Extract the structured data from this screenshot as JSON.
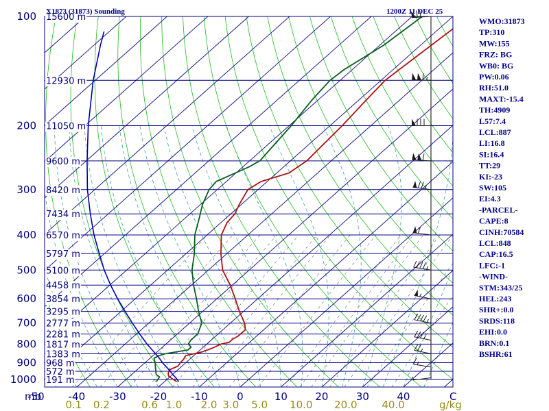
{
  "header": {
    "station": "X1873 (31873) Sounding",
    "time": "1200Z 11 DEC 25"
  },
  "chart_data": {
    "type": "line",
    "title": "X1873 (31873) Sounding",
    "subtitle": "1200Z 11 DEC 25",
    "xlabel": "",
    "ylabel": "mb",
    "pressure_levels": [
      100,
      200,
      300,
      400,
      500,
      600,
      700,
      800,
      900,
      1000
    ],
    "pressure_labels": [
      "100",
      "200",
      "300",
      "400",
      "500",
      "600",
      "700",
      "800",
      "900",
      "1000"
    ],
    "y_axis_unit": "mb",
    "temperature_ticks": [
      -50,
      -40,
      -30,
      -20,
      -10,
      0,
      10,
      20,
      30,
      40
    ],
    "temperature_tick_labels": [
      "-50",
      "-40",
      "-30",
      "-20",
      "-10",
      "0",
      "10",
      "20",
      "30",
      "40"
    ],
    "temperature_unit": "C",
    "mixing_ratio_ticks": [
      0.1,
      0.2,
      0.6,
      1.0,
      2.0,
      3.0,
      5.0,
      10.0,
      20.0,
      40.0
    ],
    "mixing_ratio_labels": [
      "0.1",
      "0.2",
      "0.6",
      "1.0",
      "2.0",
      "3.0",
      "5.0",
      "10.0",
      "20.0",
      "40.0"
    ],
    "mixing_ratio_unit": "g/kg",
    "ylim": [
      1050,
      100
    ],
    "xlim_at_1000mb": [
      -50,
      50
    ],
    "height_labels": [
      {
        "p": 100,
        "label": "15600 m"
      },
      {
        "p": 150,
        "label": "12930 m"
      },
      {
        "p": 200,
        "label": "11050 m"
      },
      {
        "p": 250,
        "label": "9600 m"
      },
      {
        "p": 300,
        "label": "8420 m"
      },
      {
        "p": 350,
        "label": "7434 m"
      },
      {
        "p": 400,
        "label": "6570 m"
      },
      {
        "p": 450,
        "label": "5797 m"
      },
      {
        "p": 500,
        "label": "5100 m"
      },
      {
        "p": 550,
        "label": "4458 m"
      },
      {
        "p": 600,
        "label": "3854 m"
      },
      {
        "p": 650,
        "label": "3295 m"
      },
      {
        "p": 700,
        "label": "2777 m"
      },
      {
        "p": 750,
        "label": "2281 m"
      },
      {
        "p": 800,
        "label": "1817 m"
      },
      {
        "p": 850,
        "label": "1383 m"
      },
      {
        "p": 900,
        "label": "968 m"
      },
      {
        "p": 950,
        "label": "572 m"
      },
      {
        "p": 1000,
        "label": "191 m"
      }
    ],
    "series": [
      {
        "kind": "temperature",
        "color": "#b01010",
        "points": [
          [
            1015,
            -17.0
          ],
          [
            995,
            -19.0
          ],
          [
            980,
            -20.5
          ],
          [
            960,
            -21.5
          ],
          [
            940,
            -22.0
          ],
          [
            920,
            -21.0
          ],
          [
            900,
            -21.3
          ],
          [
            880,
            -21.5
          ],
          [
            860,
            -22.0
          ],
          [
            840,
            -19.0
          ],
          [
            820,
            -17.5
          ],
          [
            800,
            -16.5
          ],
          [
            790,
            -15.0
          ],
          [
            775,
            -15.0
          ],
          [
            760,
            -14.5
          ],
          [
            730,
            -14.5
          ],
          [
            700,
            -16.5
          ],
          [
            650,
            -21.0
          ],
          [
            600,
            -25.5
          ],
          [
            550,
            -30.5
          ],
          [
            500,
            -36.5
          ],
          [
            450,
            -41.5
          ],
          [
            400,
            -46.5
          ],
          [
            370,
            -48.5
          ],
          [
            350,
            -49.0
          ],
          [
            330,
            -50.5
          ],
          [
            300,
            -52.5
          ],
          [
            285,
            -51.5
          ],
          [
            270,
            -47.0
          ],
          [
            250,
            -46.0
          ],
          [
            200,
            -47.0
          ],
          [
            175,
            -48.0
          ],
          [
            150,
            -49.0
          ],
          [
            140,
            -48.5
          ],
          [
            100,
            -46.0
          ]
        ]
      },
      {
        "kind": "dewpoint",
        "color": "#0b5c1e",
        "points": [
          [
            1015,
            -22.0
          ],
          [
            985,
            -22.5
          ],
          [
            970,
            -24.0
          ],
          [
            950,
            -25.0
          ],
          [
            930,
            -26.0
          ],
          [
            900,
            -27.5
          ],
          [
            875,
            -29.0
          ],
          [
            860,
            -28.5
          ],
          [
            850,
            -27.5
          ],
          [
            830,
            -23.0
          ],
          [
            815,
            -23.0
          ],
          [
            800,
            -24.5
          ],
          [
            780,
            -25.0
          ],
          [
            750,
            -25.0
          ],
          [
            700,
            -27.0
          ],
          [
            650,
            -31.0
          ],
          [
            600,
            -35.0
          ],
          [
            550,
            -39.5
          ],
          [
            500,
            -44.0
          ],
          [
            450,
            -48.0
          ],
          [
            400,
            -53.0
          ],
          [
            360,
            -56.5
          ],
          [
            330,
            -59.5
          ],
          [
            300,
            -62.0
          ],
          [
            285,
            -62.5
          ],
          [
            260,
            -58.5
          ],
          [
            250,
            -57.5
          ],
          [
            200,
            -59.5
          ],
          [
            170,
            -61.5
          ],
          [
            150,
            -62.5
          ],
          [
            140,
            -62.0
          ],
          [
            120,
            -59.0
          ],
          [
            100,
            -57.5
          ]
        ]
      },
      {
        "kind": "parcel",
        "color": "#0000b4",
        "points": [
          [
            1015,
            -16.5
          ],
          [
            990,
            -18.3
          ],
          [
            960,
            -20.7
          ],
          [
            930,
            -23.1
          ],
          [
            900,
            -25.7
          ],
          [
            870,
            -28.1
          ],
          [
            850,
            -29.9
          ],
          [
            800,
            -34.6
          ],
          [
            750,
            -39.2
          ],
          [
            700,
            -44.0
          ],
          [
            650,
            -49.0
          ],
          [
            600,
            -54.3
          ],
          [
            550,
            -59.8
          ],
          [
            500,
            -65.5
          ],
          [
            450,
            -71.3
          ],
          [
            400,
            -77.7
          ],
          [
            350,
            -84.4
          ],
          [
            300,
            -91.8
          ],
          [
            250,
            -99.8
          ],
          [
            200,
            -109.2
          ],
          [
            150,
            -120.5
          ],
          [
            120,
            -128.4
          ],
          [
            110,
            -131.3
          ]
        ]
      }
    ],
    "wind_barbs": [
      {
        "p": 990,
        "dir": 250,
        "kt": 5
      },
      {
        "p": 925,
        "dir": 295,
        "kt": 15
      },
      {
        "p": 850,
        "dir": 300,
        "kt": 25
      },
      {
        "p": 780,
        "dir": 300,
        "kt": 35
      },
      {
        "p": 700,
        "dir": 300,
        "kt": 45
      },
      {
        "p": 600,
        "dir": 300,
        "kt": 55
      },
      {
        "p": 500,
        "dir": 295,
        "kt": 45
      },
      {
        "p": 400,
        "dir": 290,
        "kt": 60
      },
      {
        "p": 300,
        "dir": 290,
        "kt": 75
      },
      {
        "p": 250,
        "dir": 280,
        "kt": 110
      },
      {
        "p": 200,
        "dir": 270,
        "kt": 80
      },
      {
        "p": 150,
        "dir": 275,
        "kt": 115
      },
      {
        "p": 100,
        "dir": 260,
        "kt": 70
      }
    ],
    "colors": {
      "isobars": "#000080",
      "isotherms": "#1c1c8c",
      "dry_adiabats": "#1cbc1c",
      "moist_adiabats": "#40a0a0",
      "mixing_ratio": "#8c8c8c",
      "frame": "#000080"
    }
  },
  "indices": [
    "WMO:31873",
    "TP:310",
    "MW:155",
    "FRZ: BG",
    "WB0: BG",
    "PW:0.06",
    "RH:51.0",
    "MAXT:-15.4",
    "TH:4909",
    "L57:7.4",
    "LCL:887",
    "LI:16.8",
    "SI:16.4",
    "TT:29",
    "KI:-23",
    "SW:105",
    "EI:4.3",
    "-PARCEL-",
    "CAPE:8",
    "CINH:70584",
    "LCL:848",
    "CAP:16.5",
    "LFC:-1",
    "-WIND-",
    "STM:343/25",
    "HEL:243",
    "SHR+:0.0",
    "SRDS:118",
    "EHI:0.0",
    "BRN:0.1",
    "BSHR:61"
  ]
}
